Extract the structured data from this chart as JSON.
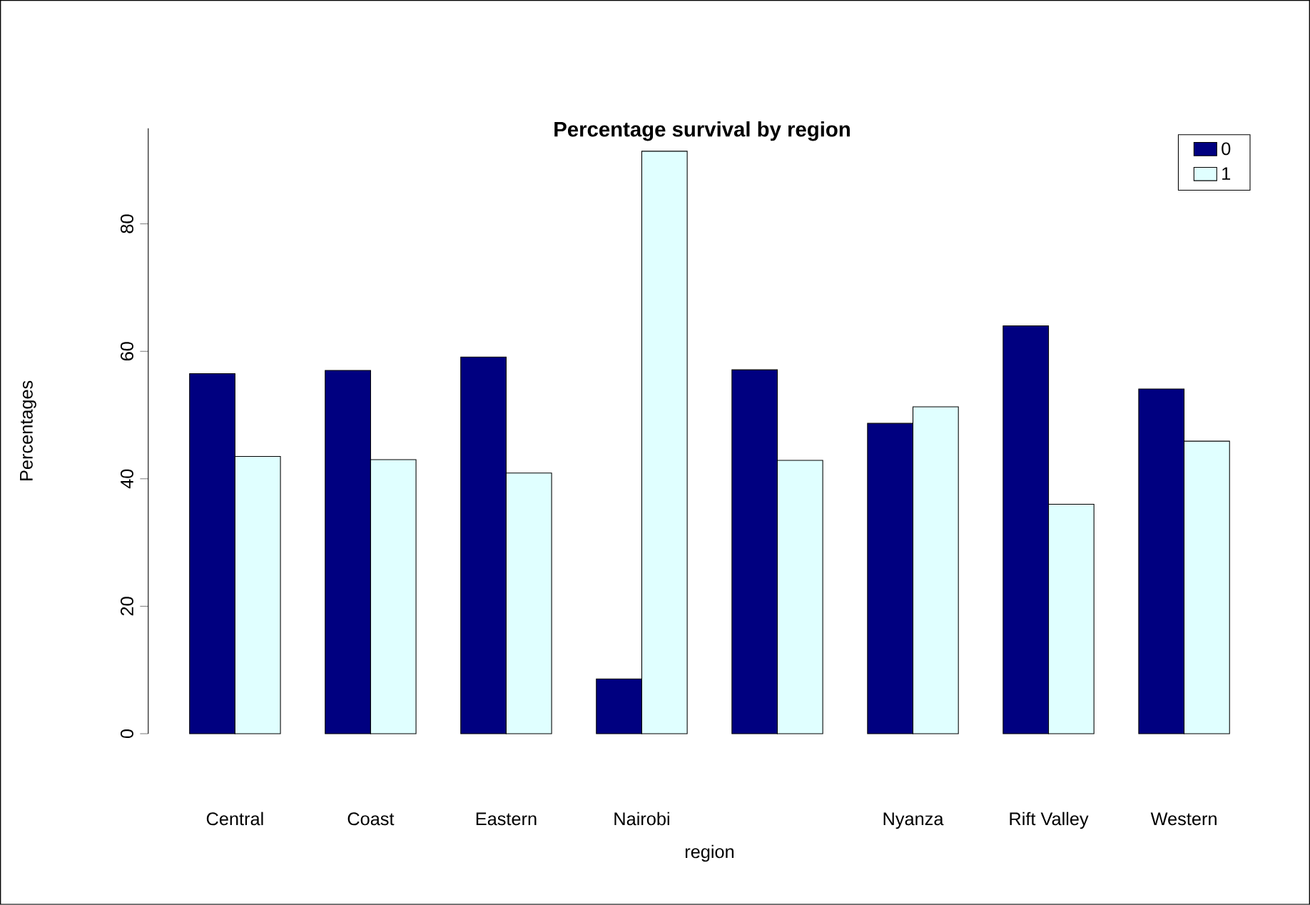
{
  "chart_data": {
    "type": "bar",
    "title": "Percentage survival by region",
    "xlabel": "region",
    "ylabel": "Percentages",
    "categories": [
      "Central",
      "Coast",
      "Eastern",
      "Nairobi",
      null,
      "Nyanza",
      "Rift Valley",
      "Western"
    ],
    "series": [
      {
        "name": "0",
        "color": "#000080",
        "values": [
          56.5,
          57.0,
          59.1,
          8.6,
          57.1,
          48.7,
          64.0,
          54.1
        ]
      },
      {
        "name": "1",
        "color": "#e0ffff",
        "values": [
          43.5,
          43.0,
          40.9,
          91.4,
          42.9,
          51.3,
          36.0,
          45.9
        ]
      }
    ],
    "ylim": [
      0,
      95
    ],
    "yticks": [
      0,
      20,
      40,
      60,
      80
    ],
    "grid": false,
    "legend": "top right"
  }
}
